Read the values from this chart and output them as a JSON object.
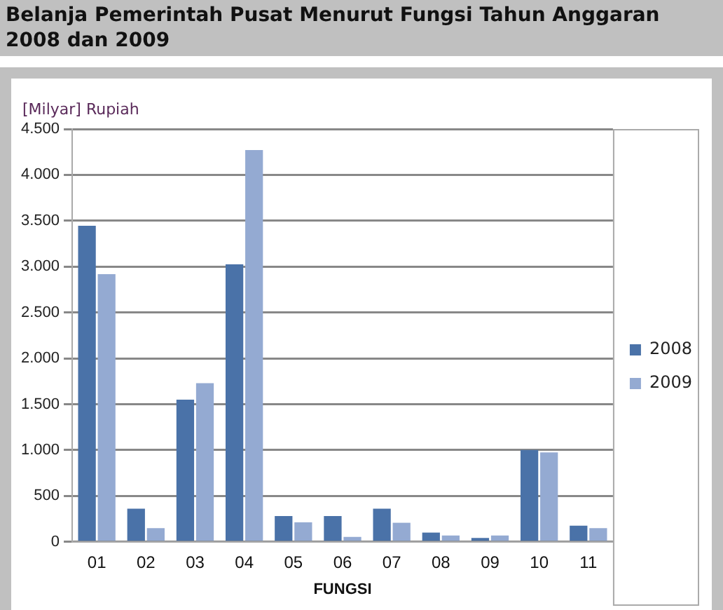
{
  "chart_data": {
    "type": "bar",
    "title": "Belanja Pemerintah Pusat Menurut Fungsi Tahun Anggaran 2008 dan 2009",
    "ylabel": "[Milyar] Rupiah",
    "xlabel": "FUNGSI",
    "categories": [
      "01",
      "02",
      "03",
      "04",
      "05",
      "06",
      "07",
      "08",
      "09",
      "10",
      "11"
    ],
    "series": [
      {
        "name": "2008",
        "color": "#4a72a8",
        "values": [
          3445,
          362,
          1550,
          3025,
          282,
          282,
          362,
          101,
          43,
          1001,
          176
        ]
      },
      {
        "name": "2009",
        "color": "#94aad2",
        "values": [
          2918,
          149,
          1730,
          4270,
          213,
          53,
          208,
          69,
          69,
          974,
          149
        ]
      }
    ],
    "ylim": [
      0,
      4500
    ],
    "yticks": [
      {
        "value": 0,
        "label": "0"
      },
      {
        "value": 500,
        "label": "500"
      },
      {
        "value": 1000,
        "label": "1.000"
      },
      {
        "value": 1500,
        "label": "1.500"
      },
      {
        "value": 2000,
        "label": "2.000"
      },
      {
        "value": 2500,
        "label": "2.500"
      },
      {
        "value": 3000,
        "label": "3.000"
      },
      {
        "value": 3500,
        "label": "3.500"
      },
      {
        "value": 4000,
        "label": "4.000"
      },
      {
        "value": 4500,
        "label": "4.500"
      }
    ],
    "grid": "y",
    "legend": "right"
  }
}
